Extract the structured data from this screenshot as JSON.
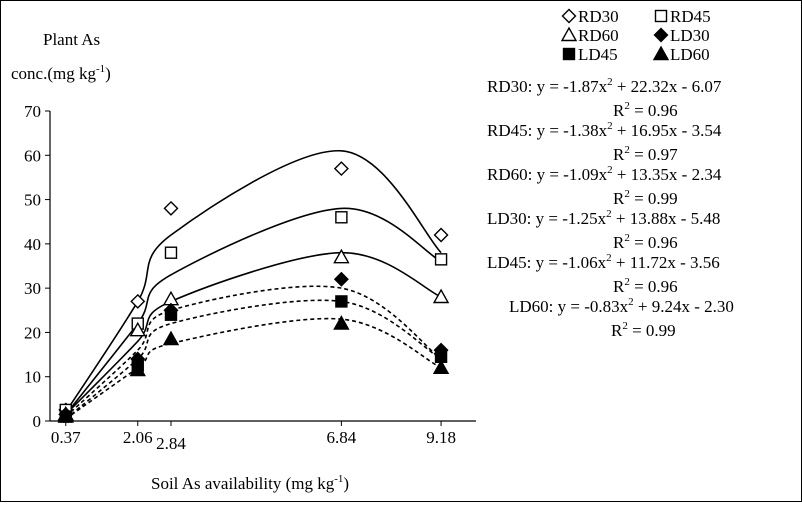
{
  "chart_data": {
    "type": "scatter",
    "ylabel_line1": "Plant As",
    "ylabel_line2_pre": "conc.(mg kg",
    "ylabel_line2_sup": "-1",
    "ylabel_line2_post": ")",
    "xlabel_pre": "Soil As availability (mg kg",
    "xlabel_sup": "-1",
    "xlabel_post": ")",
    "xlim": [
      0,
      10
    ],
    "ylim": [
      0,
      70
    ],
    "yticks": [
      "0",
      "10",
      "20",
      "30",
      "40",
      "50",
      "60",
      "70"
    ],
    "xticks": [
      {
        "value": 0.37,
        "label": "0.37"
      },
      {
        "value": 2.06,
        "label": "2.06"
      },
      {
        "value": 2.84,
        "label": "2.84"
      },
      {
        "value": 6.84,
        "label": "6.84"
      },
      {
        "value": 9.18,
        "label": "9.18"
      }
    ],
    "x": [
      0.37,
      2.06,
      2.84,
      6.84,
      9.18
    ],
    "series": [
      {
        "name": "RD30",
        "marker": "diamond-open",
        "values": [
          2.5,
          27,
          48,
          57,
          42
        ],
        "fit_x": [
          0.37,
          2.06,
          2.84,
          6.84,
          9.18
        ],
        "fit_y": [
          2,
          27,
          42,
          61,
          38
        ],
        "fit_style": "solid",
        "eq_pre": "RD30: y = -1.87x",
        "eq_post": " + 22.32x - 6.07",
        "r2": " = 0.96"
      },
      {
        "name": "RD45",
        "marker": "square-open",
        "values": [
          2.5,
          22,
          38,
          46,
          36.5
        ],
        "fit_x": [
          0.37,
          2.06,
          2.84,
          6.84,
          9.18
        ],
        "fit_y": [
          1.5,
          22,
          33,
          48,
          36
        ],
        "fit_style": "solid",
        "eq_pre": "RD45: y = -1.38x",
        "eq_post": " + 16.95x - 3.54",
        "r2": " = 0.97"
      },
      {
        "name": "RD60",
        "marker": "triangle-open",
        "values": [
          1.5,
          20.5,
          27.5,
          37,
          28
        ],
        "fit_x": [
          0.37,
          2.06,
          2.84,
          6.84,
          9.18
        ],
        "fit_y": [
          1.5,
          18,
          27,
          38,
          28
        ],
        "fit_style": "solid",
        "eq_pre": "RD60: y = -1.09x",
        "eq_post": " + 13.35x - 2.34",
        "r2": " = 0.99"
      },
      {
        "name": "LD30",
        "marker": "diamond-filled",
        "values": [
          1.5,
          14,
          25,
          32,
          16
        ],
        "fit_x": [
          0.37,
          2.06,
          2.84,
          6.84,
          9.18
        ],
        "fit_y": [
          1,
          16,
          25,
          30,
          14
        ],
        "fit_style": "dashed",
        "eq_pre": "LD30: y = -1.25x",
        "eq_post": " + 13.88x - 5.48",
        "r2": " = 0.96"
      },
      {
        "name": "LD45",
        "marker": "square-filled",
        "values": [
          1,
          12.5,
          24,
          27,
          14.5
        ],
        "fit_x": [
          0.37,
          2.06,
          2.84,
          6.84,
          9.18
        ],
        "fit_y": [
          0.5,
          14,
          22,
          27,
          14
        ],
        "fit_style": "dashed",
        "eq_pre": "LD45: y = -1.06x",
        "eq_post": " + 11.72x - 3.56",
        "r2": " = 0.96"
      },
      {
        "name": "LD60",
        "marker": "triangle-filled",
        "values": [
          1,
          11.5,
          18.5,
          22,
          12
        ],
        "fit_x": [
          0.37,
          2.06,
          2.84,
          6.84,
          9.18
        ],
        "fit_y": [
          0.5,
          12,
          17.5,
          23,
          12
        ],
        "fit_style": "dashed",
        "eq_pre": "LD60: y = -0.83x",
        "eq_post": " + 9.24x - 2.30",
        "r2": " = 0.99"
      }
    ],
    "legend_placement": "top-right",
    "grid": false
  }
}
